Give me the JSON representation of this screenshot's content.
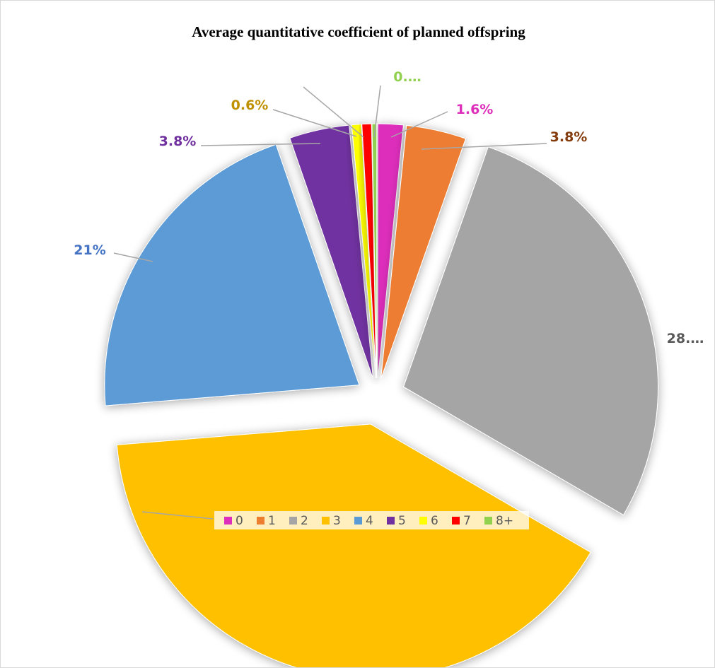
{
  "chart_data": {
    "type": "pie",
    "title": "Average quantitative coefficient of planned offspring",
    "categories": [
      "0",
      "1",
      "2",
      "3",
      "4",
      "5",
      "6",
      "7",
      "8+"
    ],
    "values": [
      1.6,
      3.8,
      28.0,
      40.3,
      21.0,
      3.8,
      0.6,
      0.6,
      0.3
    ],
    "colors": [
      "#dd2fbb",
      "#ed7d31",
      "#a5a5a5",
      "#ffc000",
      "#5b9bd5",
      "#7030a0",
      "#ffff00",
      "#ff0000",
      "#92d050"
    ],
    "label_colors": [
      "#dd2fbb",
      "#843c0c",
      "#595959",
      "#595959",
      "#4472c4",
      "#7030a0",
      "#bf9000",
      "#ff0000",
      "#92d050"
    ],
    "data_labels": [
      "1.6%",
      "3.8%",
      "28.…",
      "",
      "21%",
      "3.8%",
      "0.6%",
      "",
      "0.…"
    ],
    "legend": {
      "position": "bottom"
    },
    "exploded": true
  }
}
